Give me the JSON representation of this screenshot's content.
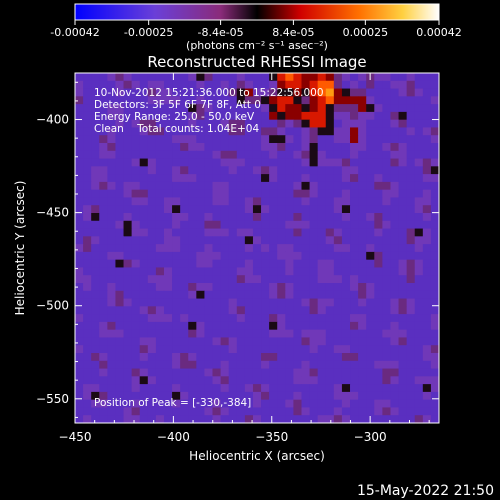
{
  "colorbar": {
    "tick_labels": [
      "-0.00042",
      "-0.00025",
      "-8.4e-05",
      "8.4e-05",
      "0.00025",
      "0.00042"
    ],
    "tick_values": [
      -0.00042,
      -0.00025,
      -8.4e-05,
      8.4e-05,
      0.00025,
      0.00042
    ],
    "range": [
      -0.00042,
      0.00042
    ],
    "unit_label": "(photons cm⁻² s⁻¹ asec⁻²)"
  },
  "chart_data": {
    "type": "heatmap",
    "title": "Reconstructed RHESSI Image",
    "xlabel": "Heliocentric X (arcsec)",
    "ylabel": "Heliocentric Y (arcsec)",
    "xlim": [
      -450,
      -265
    ],
    "ylim": [
      -563,
      -375
    ],
    "x_ticks": [
      -450,
      -400,
      -350,
      -300
    ],
    "y_ticks": [
      -550,
      -500,
      -450,
      -400
    ],
    "annotations": [
      "10-Nov-2012 15:21:36.000 to 15:22:56.000",
      "Detectors: 3F 5F 6F 7F 8F, Att 0",
      "Energy Range: 25.0 - 50.0 keV",
      "Clean    Total counts: 1.04E+04"
    ],
    "peak_label": "Position of Peak = [-330,-384]",
    "peak": [
      -330,
      -384
    ],
    "colormap": [
      "#0000ff",
      "#7b3fd0",
      "#8a2b7a",
      "#000000",
      "#e01000",
      "#ff8c00",
      "#ffff80",
      "#ffffff"
    ]
  },
  "footer": {
    "timestamp": "15-May-2022 21:50"
  }
}
